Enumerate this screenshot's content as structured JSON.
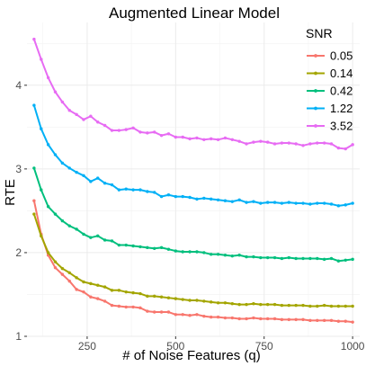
{
  "chart_data": {
    "type": "line",
    "title": "Augmented Linear Model",
    "xlabel": "# of Noise Features (q)",
    "ylabel": "RTE",
    "xlim": [
      80,
      1020
    ],
    "ylim": [
      1.0,
      4.75
    ],
    "x_ticks": [
      250,
      500,
      750,
      1000
    ],
    "y_ticks": [
      1,
      2,
      3,
      4
    ],
    "grid": true,
    "legend": {
      "title": "SNR",
      "position": "top-right"
    },
    "x": [
      100,
      120,
      140,
      160,
      180,
      200,
      220,
      240,
      260,
      280,
      300,
      320,
      340,
      360,
      380,
      400,
      420,
      440,
      460,
      480,
      500,
      520,
      540,
      560,
      580,
      600,
      620,
      640,
      660,
      680,
      700,
      720,
      740,
      760,
      780,
      800,
      820,
      840,
      860,
      880,
      900,
      920,
      940,
      960,
      980,
      1000
    ],
    "series": [
      {
        "name": "0.05",
        "color": "#F8766D",
        "values": [
          2.62,
          2.22,
          1.97,
          1.82,
          1.74,
          1.66,
          1.56,
          1.53,
          1.47,
          1.45,
          1.42,
          1.37,
          1.36,
          1.35,
          1.35,
          1.34,
          1.3,
          1.29,
          1.29,
          1.29,
          1.26,
          1.26,
          1.25,
          1.26,
          1.24,
          1.23,
          1.23,
          1.22,
          1.22,
          1.21,
          1.21,
          1.22,
          1.21,
          1.21,
          1.21,
          1.2,
          1.2,
          1.2,
          1.2,
          1.19,
          1.19,
          1.19,
          1.19,
          1.18,
          1.18,
          1.17
        ]
      },
      {
        "name": "0.14",
        "color": "#A3A500",
        "values": [
          2.46,
          2.2,
          2.0,
          1.89,
          1.81,
          1.76,
          1.7,
          1.65,
          1.63,
          1.61,
          1.59,
          1.55,
          1.55,
          1.53,
          1.52,
          1.51,
          1.48,
          1.48,
          1.47,
          1.46,
          1.45,
          1.44,
          1.43,
          1.43,
          1.42,
          1.41,
          1.4,
          1.4,
          1.39,
          1.38,
          1.38,
          1.39,
          1.38,
          1.38,
          1.38,
          1.37,
          1.37,
          1.37,
          1.37,
          1.36,
          1.36,
          1.37,
          1.36,
          1.36,
          1.36,
          1.36
        ]
      },
      {
        "name": "0.42",
        "color": "#00BF7D",
        "values": [
          3.01,
          2.75,
          2.55,
          2.46,
          2.38,
          2.32,
          2.28,
          2.22,
          2.18,
          2.2,
          2.15,
          2.14,
          2.09,
          2.09,
          2.08,
          2.07,
          2.06,
          2.05,
          2.06,
          2.04,
          2.02,
          2.01,
          2.01,
          2.01,
          2.0,
          1.98,
          1.98,
          1.97,
          1.96,
          1.97,
          1.95,
          1.95,
          1.94,
          1.94,
          1.94,
          1.93,
          1.94,
          1.93,
          1.93,
          1.93,
          1.93,
          1.92,
          1.93,
          1.9,
          1.91,
          1.92
        ]
      },
      {
        "name": "1.22",
        "color": "#00B0F6",
        "values": [
          3.76,
          3.48,
          3.29,
          3.17,
          3.07,
          3.01,
          2.96,
          2.92,
          2.85,
          2.89,
          2.83,
          2.81,
          2.75,
          2.76,
          2.75,
          2.75,
          2.73,
          2.72,
          2.67,
          2.69,
          2.67,
          2.67,
          2.66,
          2.64,
          2.65,
          2.64,
          2.63,
          2.62,
          2.61,
          2.63,
          2.6,
          2.61,
          2.59,
          2.6,
          2.6,
          2.59,
          2.6,
          2.59,
          2.59,
          2.58,
          2.59,
          2.59,
          2.58,
          2.56,
          2.57,
          2.59
        ]
      },
      {
        "name": "3.52",
        "color": "#E76BF3",
        "values": [
          4.55,
          4.31,
          4.09,
          3.92,
          3.8,
          3.7,
          3.65,
          3.59,
          3.63,
          3.56,
          3.52,
          3.46,
          3.46,
          3.47,
          3.49,
          3.44,
          3.43,
          3.44,
          3.4,
          3.42,
          3.38,
          3.38,
          3.36,
          3.37,
          3.35,
          3.36,
          3.35,
          3.37,
          3.35,
          3.33,
          3.3,
          3.32,
          3.33,
          3.32,
          3.3,
          3.31,
          3.31,
          3.3,
          3.28,
          3.3,
          3.31,
          3.31,
          3.3,
          3.25,
          3.24,
          3.29
        ]
      }
    ]
  }
}
